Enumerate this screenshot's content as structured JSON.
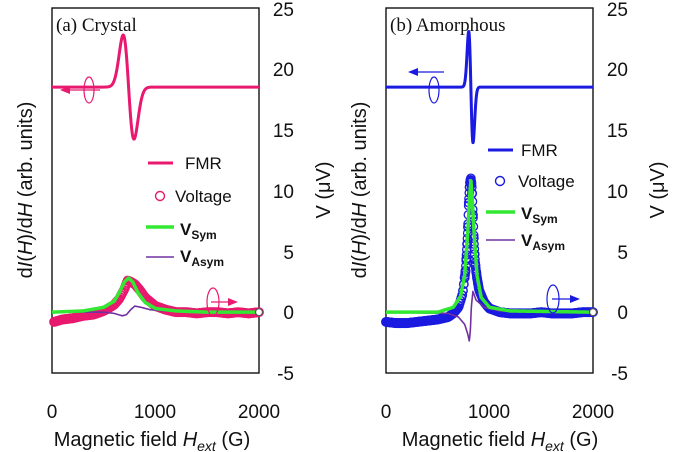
{
  "chart_data": [
    {
      "type": "line",
      "title": "(a) Crystal",
      "xlabel_prefix": "Magnetic field ",
      "xlabel_var": "H",
      "xlabel_sub": "ext",
      "xlabel_unit": " (G)",
      "ylabel_left": "dI(H)/dH (arb. units)",
      "ylabel_right": "V (μV)",
      "xlim": [
        0,
        2000
      ],
      "ylim_right": [
        -5,
        25
      ],
      "x_ticks": [
        "0",
        "1000",
        "2000"
      ],
      "y_right_ticks": [
        "-5",
        "0",
        "5",
        "10",
        "15",
        "20",
        "25"
      ],
      "legend": [
        "FMR",
        "Voltage",
        "V",
        "V"
      ],
      "legend_subs": [
        "",
        "",
        "Sym",
        "Asym"
      ],
      "fmr": {
        "baseline": 18.5,
        "center": 740,
        "width": 70,
        "amplitude": 4.3
      },
      "series": [
        {
          "name": "FMR",
          "color": "#e8196e",
          "x": [
            0,
            400,
            600,
            650,
            700,
            740,
            780,
            830,
            900,
            1000,
            1200,
            1500,
            2000
          ],
          "y": [
            18.5,
            18.6,
            19.6,
            20.6,
            22.4,
            21.2,
            16.0,
            14.6,
            16.4,
            17.6,
            18.3,
            18.5,
            18.5
          ]
        },
        {
          "name": "Voltage",
          "color": "#e8196e",
          "x": [
            20,
            100,
            200,
            300,
            400,
            500,
            600,
            650,
            700,
            730,
            760,
            800,
            850,
            900,
            1000,
            1100,
            1200,
            1300,
            1400,
            1500,
            1600,
            1700,
            1800,
            1900,
            2000
          ],
          "y": [
            -0.8,
            -0.6,
            -0.5,
            -0.3,
            -0.2,
            0.1,
            0.6,
            1.1,
            1.9,
            2.6,
            2.5,
            2.3,
            1.8,
            1.2,
            0.5,
            0.2,
            0.0,
            0.0,
            -0.1,
            0.0,
            0.0,
            -0.1,
            0.0,
            -0.1,
            0.0
          ]
        },
        {
          "name": "VSym",
          "color": "#33e833",
          "x": [
            0,
            300,
            500,
            600,
            650,
            700,
            740,
            780,
            830,
            900,
            1000,
            1200,
            1500,
            2000
          ],
          "y": [
            0.0,
            0.1,
            0.4,
            0.9,
            1.6,
            2.5,
            2.8,
            2.5,
            1.6,
            0.8,
            0.3,
            0.1,
            0.0,
            0.0
          ]
        },
        {
          "name": "VAsym",
          "color": "#7030a0",
          "x": [
            0,
            500,
            600,
            680,
            720,
            760,
            800,
            860,
            950,
            1100,
            1400,
            2000
          ],
          "y": [
            0.0,
            0.0,
            -0.1,
            -0.3,
            -0.2,
            0.2,
            0.5,
            0.4,
            0.2,
            0.1,
            0.0,
            0.0
          ]
        }
      ]
    },
    {
      "type": "line",
      "title": "(b) Amorphous",
      "xlabel_prefix": "Magnetic field ",
      "xlabel_var": "H",
      "xlabel_sub": "ext",
      "xlabel_unit": " (G)",
      "ylabel_left": "dI(H)/dH (arb. units)",
      "ylabel_right": "V (μV)",
      "xlim": [
        0,
        2000
      ],
      "ylim_right": [
        -5,
        25
      ],
      "x_ticks": [
        "0",
        "1000",
        "2000"
      ],
      "y_right_ticks": [
        "-5",
        "0",
        "5",
        "10",
        "15",
        "20",
        "25"
      ],
      "legend": [
        "FMR",
        "Voltage",
        "V",
        "V"
      ],
      "legend_subs": [
        "",
        "",
        "Sym",
        "Asym"
      ],
      "fmr": {
        "baseline": 18.5,
        "center": 820,
        "width": 28,
        "amplitude": 4.6
      },
      "series": [
        {
          "name": "FMR",
          "color": "#1a1ae0",
          "x": [
            0,
            600,
            740,
            770,
            790,
            800,
            820,
            840,
            860,
            900,
            1000,
            2000
          ],
          "y": [
            18.5,
            18.6,
            19.6,
            21.2,
            22.6,
            22.2,
            17.0,
            12.8,
            15.6,
            17.8,
            18.4,
            18.5
          ]
        },
        {
          "name": "Voltage",
          "color": "#1a1ae0",
          "x": [
            0,
            100,
            200,
            300,
            400,
            500,
            600,
            650,
            700,
            740,
            770,
            790,
            800,
            810,
            820,
            830,
            840,
            850,
            860,
            870,
            880,
            900,
            950,
            1000,
            1100,
            1200,
            1300,
            1400,
            1500,
            1600,
            1700,
            1800,
            1900,
            2000
          ],
          "y": [
            -0.8,
            -0.9,
            -0.9,
            -0.8,
            -0.7,
            -0.6,
            -0.4,
            -0.1,
            0.4,
            1.5,
            3.5,
            6.5,
            9.0,
            10.6,
            11.0,
            10.2,
            8.0,
            5.6,
            4.2,
            3.4,
            2.8,
            1.8,
            0.8,
            0.3,
            0.0,
            -0.1,
            -0.1,
            -0.1,
            0.0,
            -0.1,
            -0.1,
            -0.1,
            0.0,
            0.0
          ]
        },
        {
          "name": "VSym",
          "color": "#33e833",
          "x": [
            0,
            500,
            650,
            720,
            760,
            790,
            810,
            820,
            830,
            850,
            880,
            920,
            1000,
            1200,
            2000
          ],
          "y": [
            0.0,
            0.0,
            0.4,
            1.3,
            3.0,
            6.6,
            9.8,
            10.8,
            9.8,
            6.6,
            3.0,
            1.2,
            0.4,
            0.1,
            0.0
          ]
        },
        {
          "name": "VAsym",
          "color": "#7030a0",
          "x": [
            0,
            600,
            700,
            760,
            790,
            805,
            815,
            825,
            840,
            870,
            950,
            1100,
            2000
          ],
          "y": [
            0.0,
            -0.1,
            -0.4,
            -1.0,
            -1.8,
            -2.4,
            -1.5,
            0.5,
            1.7,
            1.0,
            0.4,
            0.1,
            0.0
          ]
        }
      ]
    }
  ]
}
